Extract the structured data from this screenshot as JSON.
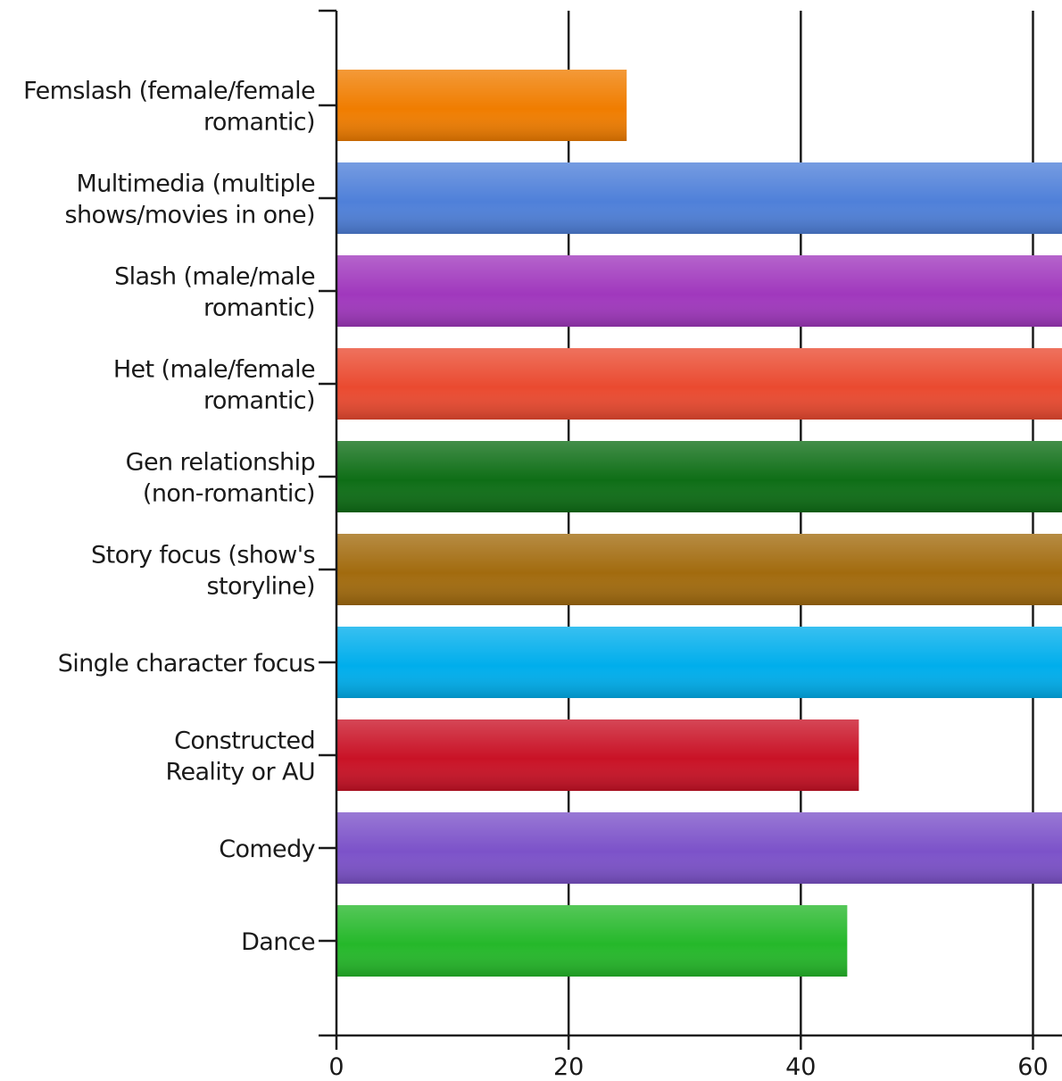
{
  "chart_data": {
    "type": "bar",
    "orientation": "horizontal",
    "categories": [
      [
        "Femslash (female/female",
        "romantic)"
      ],
      [
        "Multimedia (multiple",
        "shows/movies in one)"
      ],
      [
        "Slash (male/male",
        "romantic)"
      ],
      [
        "Het (male/female",
        "romantic)"
      ],
      [
        "Gen relationship",
        "(non-romantic)"
      ],
      [
        "Story focus (show's",
        "storyline)"
      ],
      [
        "Single character focus"
      ],
      [
        "Constructed",
        "Reality or AU"
      ],
      [
        "Comedy"
      ],
      [
        "Dance"
      ]
    ],
    "values": [
      25,
      63,
      63,
      63,
      63,
      63,
      63,
      45,
      63,
      44
    ],
    "colors": [
      "#f07d00",
      "#4f80d9",
      "#a038bd",
      "#ea4a30",
      "#0e6e16",
      "#a26b0e",
      "#00aeec",
      "#c91226",
      "#7c52c9",
      "#25b82a"
    ],
    "xlim": [
      0,
      62.5
    ],
    "xticks": [
      0,
      20,
      40,
      60
    ],
    "grid": true,
    "title": "",
    "xlabel": "",
    "ylabel": ""
  }
}
